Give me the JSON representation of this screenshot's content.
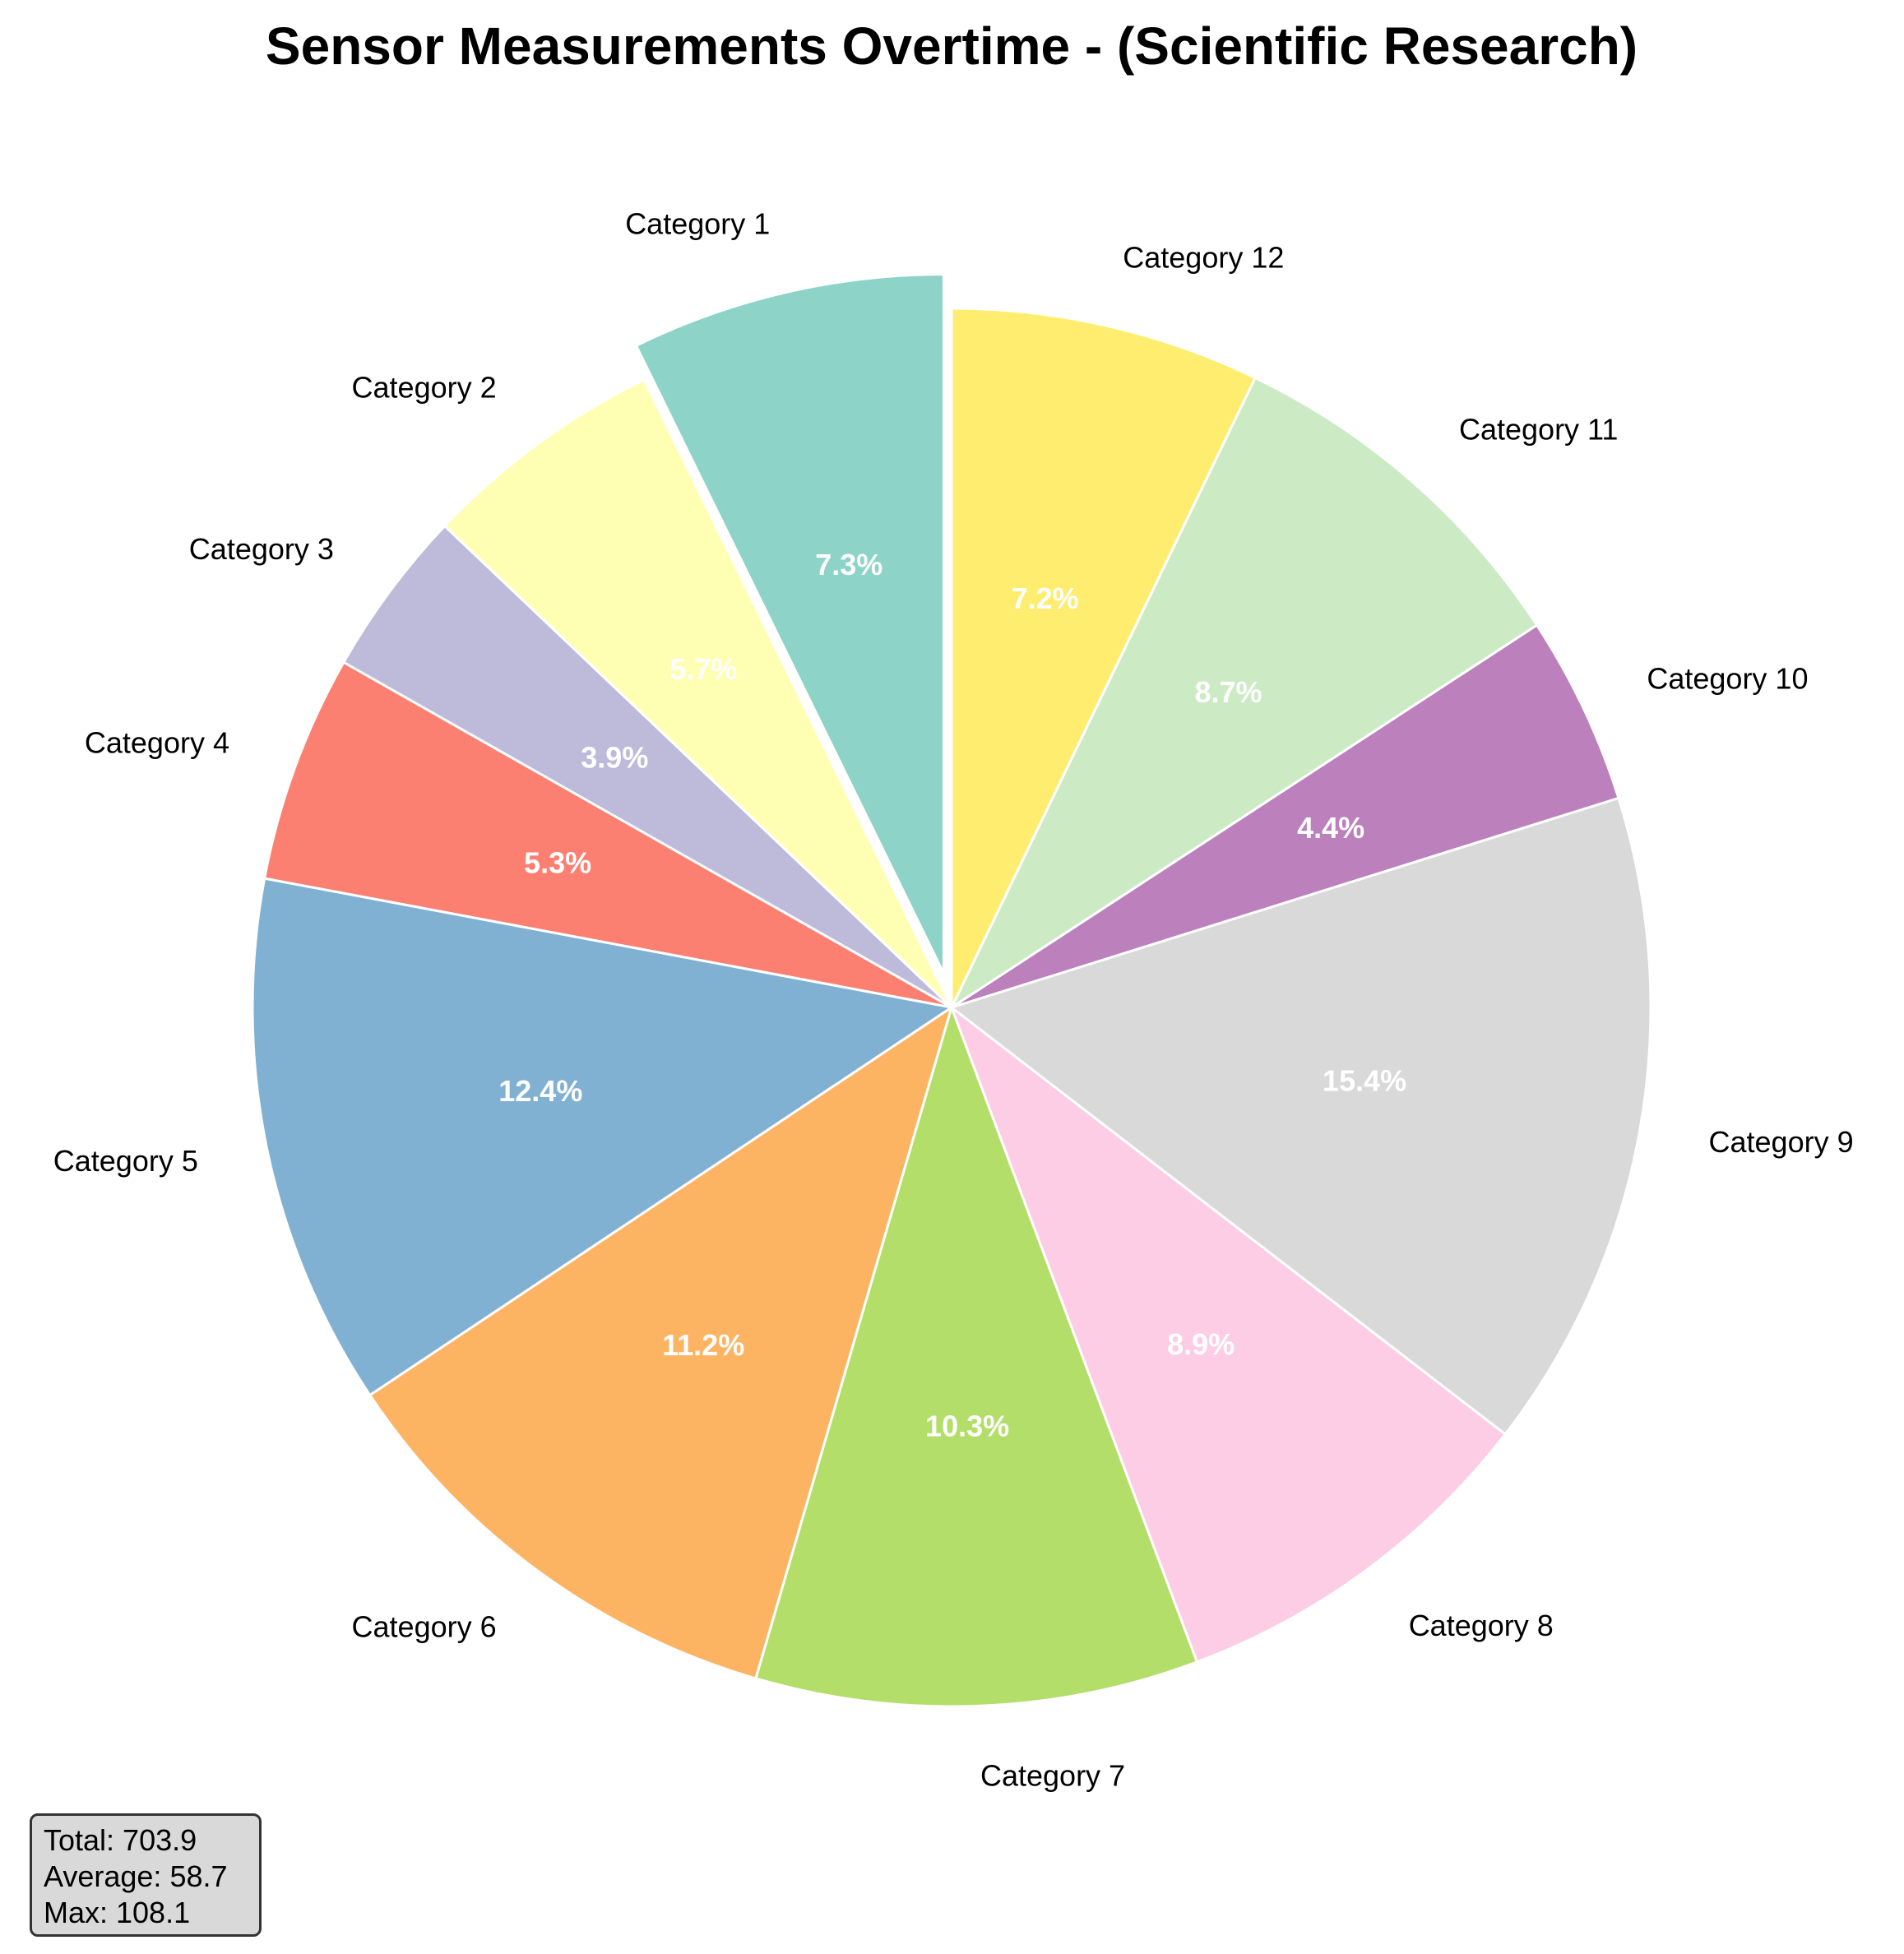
{
  "chart_data": {
    "type": "pie",
    "title": "Sensor Measurements Overtime - (Scientific Research)",
    "categories": [
      "Category 1",
      "Category 2",
      "Category 3",
      "Category 4",
      "Category 5",
      "Category 6",
      "Category 7",
      "Category 8",
      "Category 9",
      "Category 10",
      "Category 11",
      "Category 12"
    ],
    "percentages": [
      7.3,
      5.7,
      3.9,
      5.3,
      12.4,
      11.2,
      10.3,
      8.9,
      15.4,
      4.4,
      8.7,
      7.2
    ],
    "pct_labels": [
      "7.3%",
      "5.7%",
      "3.9%",
      "5.3%",
      "12.4%",
      "11.2%",
      "10.3%",
      "8.9%",
      "15.4%",
      "4.4%",
      "8.7%",
      "7.2%"
    ],
    "colors": [
      "#8dd3c7",
      "#ffffb3",
      "#bebada",
      "#fb8072",
      "#80b1d3",
      "#fdb462",
      "#b3de69",
      "#fccde5",
      "#d9d9d9",
      "#bc80bd",
      "#ccebc5",
      "#ffed6f"
    ],
    "exploded": "Category 1",
    "start_angle": 90,
    "direction": "counterclockwise"
  },
  "stats": {
    "total": "Total: 703.9",
    "average": "Average: 58.7",
    "max": "Max: 108.1"
  }
}
